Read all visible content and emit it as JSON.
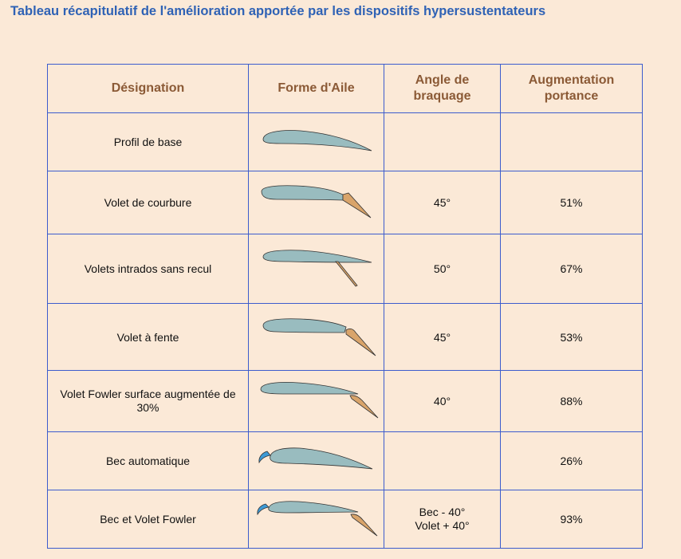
{
  "title": "Tableau récapitulatif de l'amélioration apportée par les dispositifs hypersustentateurs",
  "headers": {
    "designation": "Désignation",
    "forme": "Forme d'Aile",
    "angle_line1": "Angle de",
    "angle_line2": "braquage",
    "portance_line1": "Augmentation",
    "portance_line2": "portance"
  },
  "colors": {
    "wing": "#99bcbf",
    "flap": "#d9a46a",
    "slat": "#3d9ad6",
    "border": "#3c5ccd",
    "header_text": "#8b5a36",
    "title_text": "#2f62b5",
    "background": "#fbe9d7"
  },
  "rows": [
    {
      "designation": "Profil de base",
      "shape_icon": "base-airfoil-icon",
      "angle_line1": "",
      "angle_line2": "",
      "portance": ""
    },
    {
      "designation": "Volet de courbure",
      "shape_icon": "camber-flap-icon",
      "angle_line1": "45°",
      "angle_line2": "",
      "portance": "51%"
    },
    {
      "designation": "Volets intrados sans recul",
      "shape_icon": "split-flap-icon",
      "angle_line1": "50°",
      "angle_line2": "",
      "portance": "67%"
    },
    {
      "designation": "Volet à fente",
      "shape_icon": "slotted-flap-icon",
      "angle_line1": "45°",
      "angle_line2": "",
      "portance": "53%"
    },
    {
      "designation": "Volet Fowler surface augmentée de 30%",
      "shape_icon": "fowler-flap-icon",
      "angle_line1": "40°",
      "angle_line2": "",
      "portance": "88%"
    },
    {
      "designation": "Bec automatique",
      "shape_icon": "auto-slat-icon",
      "angle_line1": "",
      "angle_line2": "",
      "portance": "26%"
    },
    {
      "designation": "Bec et Volet Fowler",
      "shape_icon": "slat-fowler-icon",
      "angle_line1": "Bec - 40°",
      "angle_line2": "Volet + 40°",
      "portance": "93%"
    }
  ]
}
